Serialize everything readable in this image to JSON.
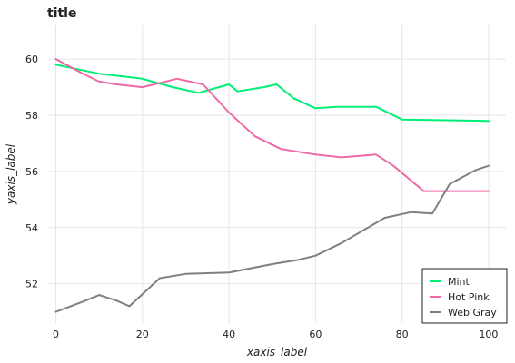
{
  "chart_data": {
    "type": "line",
    "title": "title",
    "xlabel": "xaxis_label",
    "ylabel": "yaxis_label",
    "xlim": [
      -2,
      104
    ],
    "ylim": [
      50.6,
      61.2
    ],
    "x_ticks": [
      0,
      20,
      40,
      60,
      80,
      100
    ],
    "y_ticks": [
      52,
      54,
      56,
      58,
      60
    ],
    "grid": true,
    "legend_position": "bottom-right",
    "series": [
      {
        "name": "Mint",
        "color": "#00ee76",
        "points": [
          [
            0,
            59.8
          ],
          [
            10,
            59.48
          ],
          [
            20,
            59.3
          ],
          [
            27,
            59.0
          ],
          [
            33,
            58.8
          ],
          [
            40,
            59.1
          ],
          [
            42,
            58.85
          ],
          [
            48,
            59.0
          ],
          [
            51,
            59.1
          ],
          [
            55,
            58.6
          ],
          [
            60,
            58.25
          ],
          [
            65,
            58.3
          ],
          [
            74,
            58.3
          ],
          [
            80,
            57.85
          ],
          [
            100,
            57.8
          ]
        ]
      },
      {
        "name": "Hot Pink",
        "color": "#ee6aa7",
        "points": [
          [
            0,
            60.0
          ],
          [
            6,
            59.5
          ],
          [
            10,
            59.2
          ],
          [
            14,
            59.1
          ],
          [
            20,
            59.0
          ],
          [
            28,
            59.3
          ],
          [
            34,
            59.1
          ],
          [
            40,
            58.1
          ],
          [
            46,
            57.25
          ],
          [
            52,
            56.8
          ],
          [
            60,
            56.6
          ],
          [
            66,
            56.5
          ],
          [
            74,
            56.6
          ],
          [
            78,
            56.2
          ],
          [
            85,
            55.3
          ],
          [
            100,
            55.3
          ]
        ]
      },
      {
        "name": "Web Gray",
        "color": "#808080",
        "points": [
          [
            0,
            51.0
          ],
          [
            6,
            51.35
          ],
          [
            10,
            51.6
          ],
          [
            14,
            51.4
          ],
          [
            17,
            51.2
          ],
          [
            24,
            52.2
          ],
          [
            30,
            52.35
          ],
          [
            40,
            52.4
          ],
          [
            50,
            52.7
          ],
          [
            56,
            52.85
          ],
          [
            60,
            53.0
          ],
          [
            66,
            53.45
          ],
          [
            76,
            54.35
          ],
          [
            82,
            54.55
          ],
          [
            87,
            54.5
          ],
          [
            91,
            55.55
          ],
          [
            97,
            56.05
          ],
          [
            100,
            56.2
          ]
        ]
      }
    ]
  }
}
